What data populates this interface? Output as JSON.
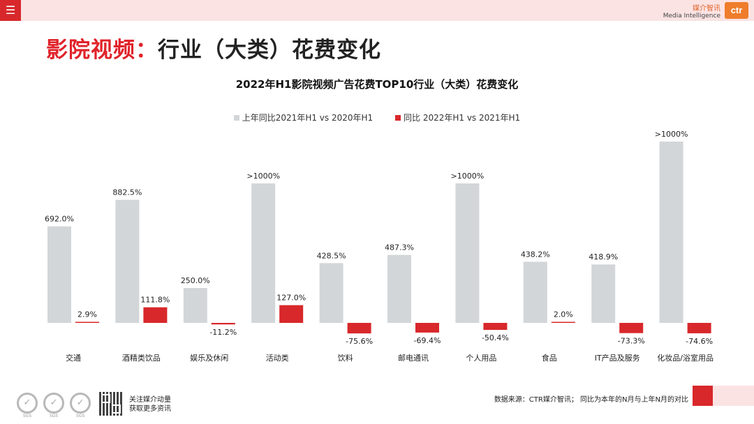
{
  "header": {
    "menu_icon": "hamburger-menu-icon",
    "brand_cn": "媒介智讯",
    "brand_en": "Media Intelligence",
    "logo_text": "ctr",
    "accent_color": "#d8282b"
  },
  "page_title": {
    "prefix": "影院视频：",
    "rest": "行业（大类）花费变化"
  },
  "chart_data": {
    "type": "bar",
    "title": "2022年H1影院视频广告花费TOP10行业（大类）花费变化",
    "categories": [
      "交通",
      "酒精类饮品",
      "娱乐及休闲",
      "活动类",
      "饮料",
      "邮电通讯",
      "个人用品",
      "食品",
      "IT产品及服务",
      "化妆品/浴室用品"
    ],
    "series": [
      {
        "name": "上年同比2021年H1 vs 2020年H1",
        "color": "#d3d6d8",
        "values": [
          692.0,
          882.5,
          250.0,
          1000,
          428.5,
          487.3,
          1000,
          438.2,
          418.9,
          1300
        ],
        "labels": [
          "692.0%",
          "882.5%",
          "250.0%",
          ">1000%",
          "428.5%",
          "487.3%",
          ">1000%",
          "438.2%",
          "418.9%",
          ">1000%"
        ]
      },
      {
        "name": "同比 2022年H1  vs 2021年H1",
        "color": "#d8282b",
        "values": [
          2.9,
          111.8,
          -11.2,
          127.0,
          -75.6,
          -69.4,
          -50.4,
          2.0,
          -73.3,
          -74.6
        ],
        "labels": [
          "2.9%",
          "111.8%",
          "-11.2%",
          "127.0%",
          "-75.6%",
          "-69.4%",
          "-50.4%",
          "2.0%",
          "-73.3%",
          "-74.6%"
        ]
      }
    ],
    "xlabel": "",
    "ylabel": "",
    "ylim": [
      -100,
      1300
    ],
    "grid": false,
    "legend_position": "top-center"
  },
  "footer": {
    "seal_label": "SGS",
    "follow_line1": "关注媒介动量",
    "follow_line2": "获取更多资讯",
    "source": "数据来源：CTR媒介智讯； 同比为本年的N月与上年N月的对比"
  }
}
